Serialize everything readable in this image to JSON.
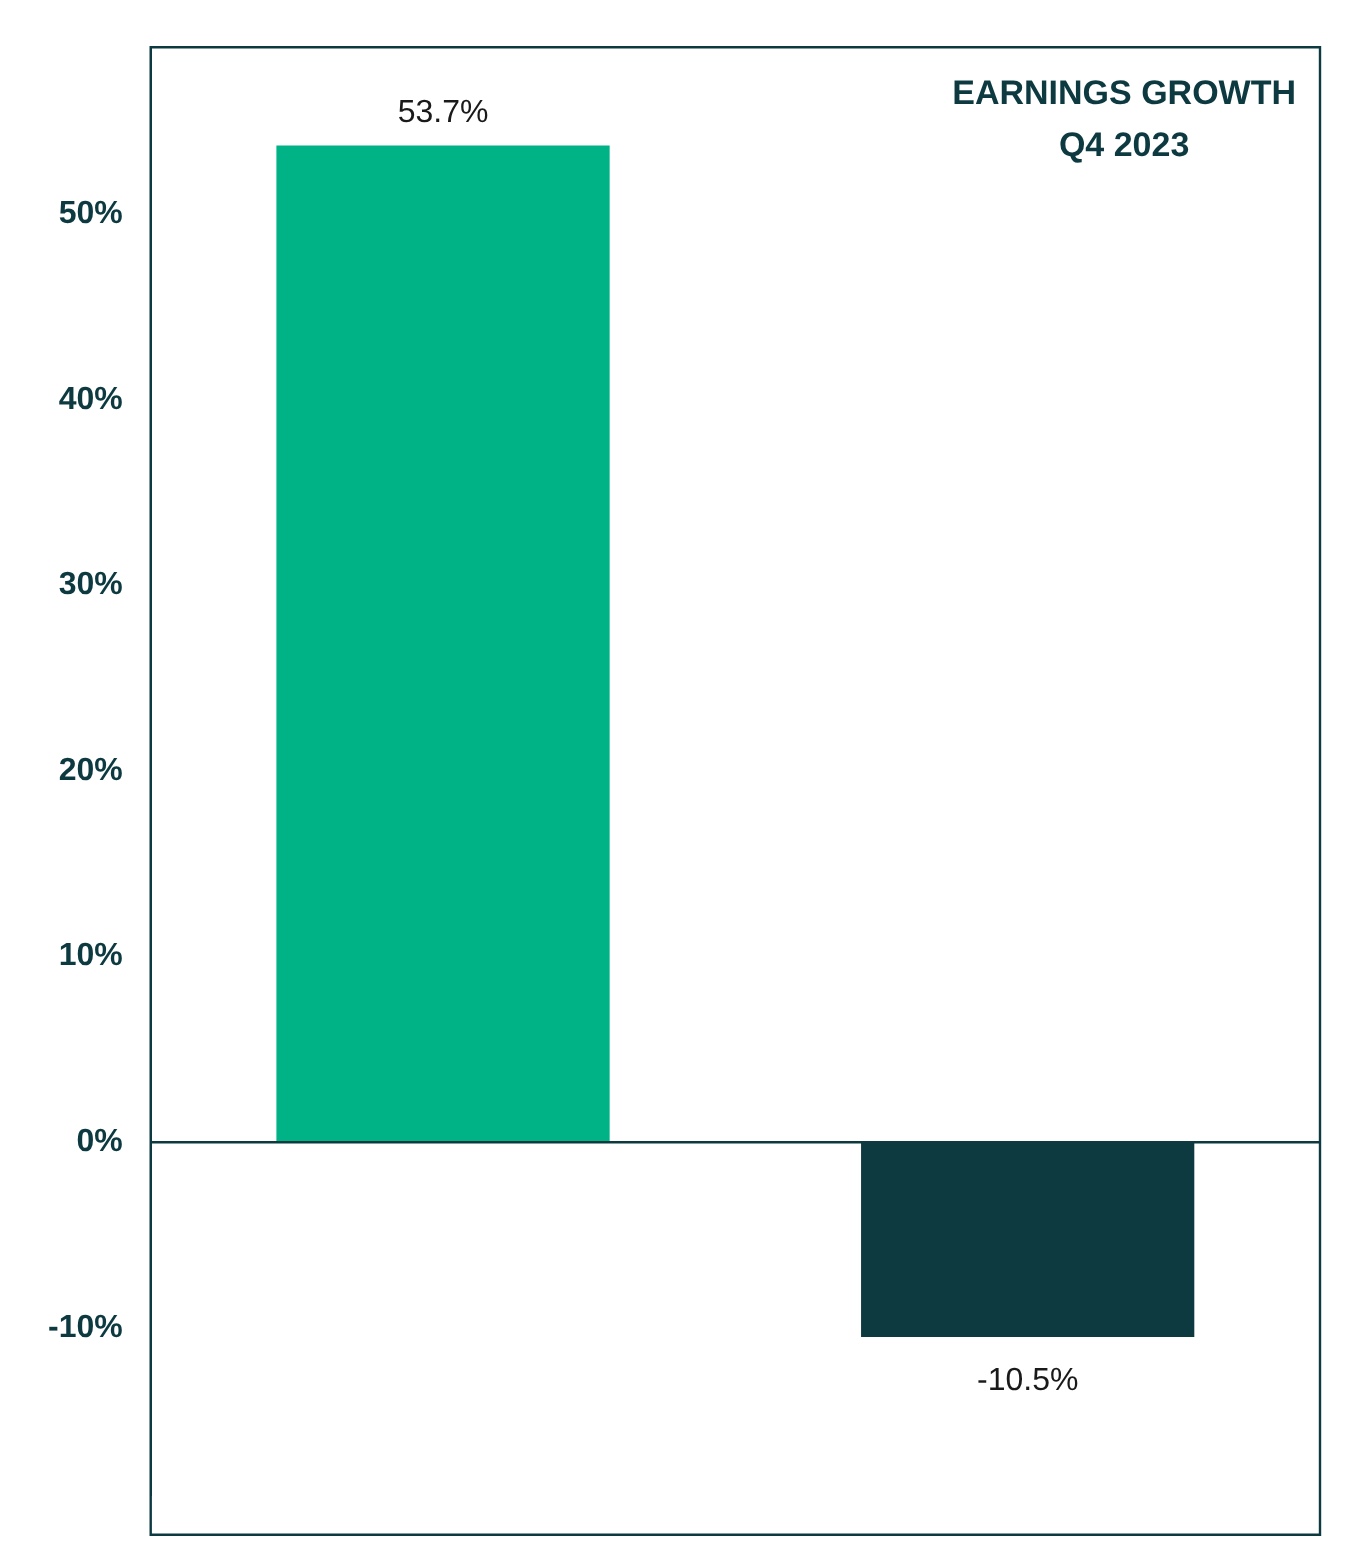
{
  "chart_data": {
    "type": "bar",
    "title": "EARNINGS GROWTH\nQ4 2023",
    "categories": [
      null,
      null
    ],
    "values": [
      53.7,
      -10.5
    ],
    "colors": [
      "#00b386",
      "#0d3a40"
    ],
    "value_labels": [
      "53.7%",
      "-10.5%"
    ],
    "ylim": [
      -19,
      59
    ],
    "yticks": [
      {
        "value": -10,
        "label": "-10%"
      },
      {
        "value": 0,
        "label": "0%"
      },
      {
        "value": 10,
        "label": "10%"
      },
      {
        "value": 20,
        "label": "20%"
      },
      {
        "value": 30,
        "label": "30%"
      },
      {
        "value": 40,
        "label": "40%"
      },
      {
        "value": 50,
        "label": "50%"
      }
    ],
    "grid": false,
    "legend": false
  }
}
